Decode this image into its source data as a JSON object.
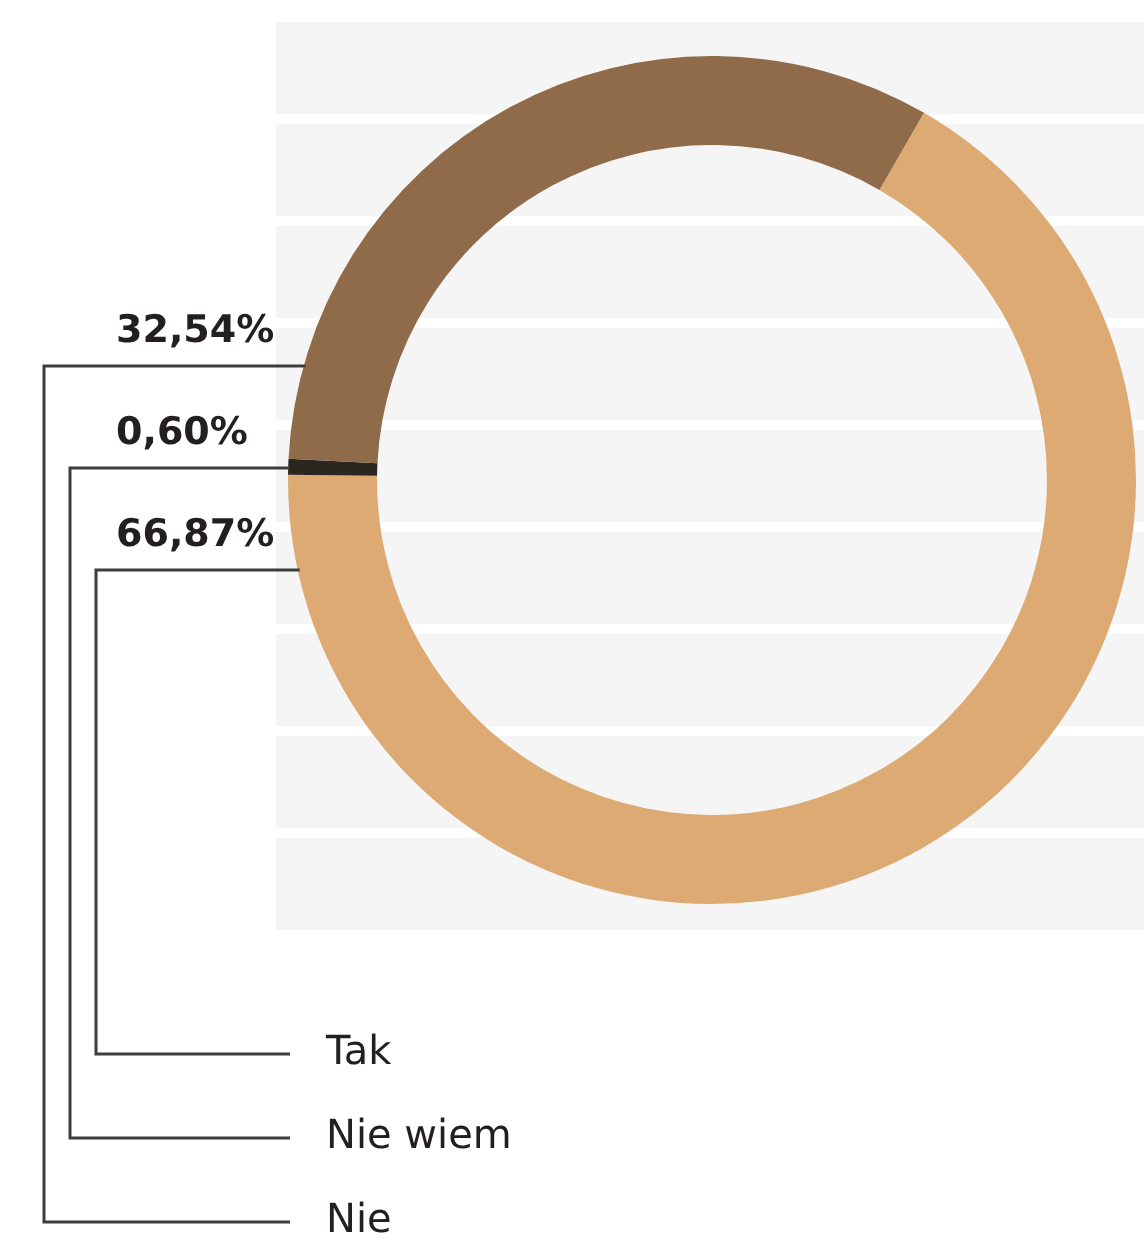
{
  "chart_data": {
    "type": "donut",
    "categories": [
      "Tak",
      "Nie wiem",
      "Nie"
    ],
    "values": [
      66.87,
      0.6,
      32.54
    ],
    "colors": [
      "#deaa74",
      "#2b2620",
      "#8f6b4a"
    ],
    "value_labels": [
      "66,87%",
      "0,60%",
      "32,54%"
    ]
  }
}
